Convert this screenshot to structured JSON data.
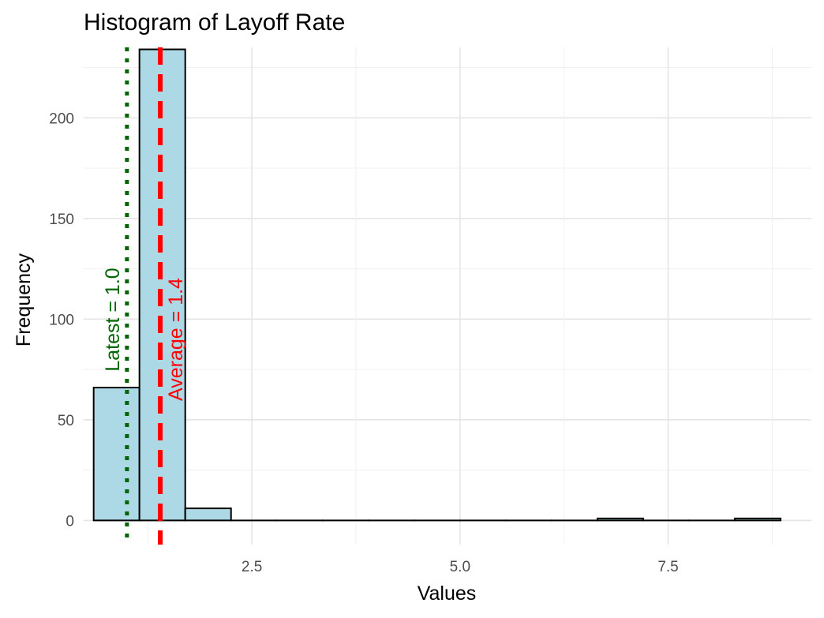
{
  "chart_data": {
    "type": "bar",
    "title": "Histogram of Layoff Rate",
    "xlabel": "Values",
    "ylabel": "Frequency",
    "xlim": [
      0.48,
      9.22
    ],
    "ylim": [
      -12,
      235
    ],
    "x_ticks": [
      2.5,
      5.0,
      7.5
    ],
    "x_tick_labels": [
      "2.5",
      "5.0",
      "7.5"
    ],
    "y_ticks": [
      0,
      50,
      100,
      150,
      200
    ],
    "y_tick_labels": [
      "0",
      "50",
      "100",
      "150",
      "200"
    ],
    "bins": [
      {
        "x0": 0.6,
        "x1": 1.15,
        "count": 66
      },
      {
        "x0": 1.15,
        "x1": 1.7,
        "count": 234
      },
      {
        "x0": 1.7,
        "x1": 2.25,
        "count": 6
      },
      {
        "x0": 2.25,
        "x1": 2.8,
        "count": 0
      },
      {
        "x0": 2.8,
        "x1": 3.35,
        "count": 0
      },
      {
        "x0": 3.35,
        "x1": 3.9,
        "count": 0
      },
      {
        "x0": 3.9,
        "x1": 4.45,
        "count": 0
      },
      {
        "x0": 4.45,
        "x1": 5.0,
        "count": 0
      },
      {
        "x0": 5.0,
        "x1": 5.55,
        "count": 0
      },
      {
        "x0": 5.55,
        "x1": 6.1,
        "count": 0
      },
      {
        "x0": 6.1,
        "x1": 6.65,
        "count": 0
      },
      {
        "x0": 6.65,
        "x1": 7.2,
        "count": 1
      },
      {
        "x0": 7.2,
        "x1": 7.75,
        "count": 0
      },
      {
        "x0": 7.75,
        "x1": 8.3,
        "count": 0
      },
      {
        "x0": 8.3,
        "x1": 8.85,
        "count": 1
      }
    ],
    "reference_lines": [
      {
        "value": 1.0,
        "label": "Latest = 1.0",
        "style": "dotted",
        "color": "#006400"
      },
      {
        "value": 1.4,
        "label": "Average = 1.4",
        "style": "dashed",
        "color": "#ff0000"
      }
    ],
    "bar_fill": "#add8e6",
    "bar_stroke": "#000000",
    "grid": true
  }
}
